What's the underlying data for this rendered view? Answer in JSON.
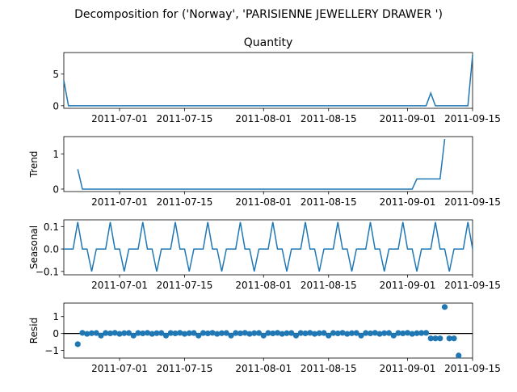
{
  "figure": {
    "suptitle": "Decomposition for ('Norway', 'PARISIENNE JEWELLERY DRAWER ')",
    "line_color": "#1f77b4"
  },
  "chart_data": [
    {
      "type": "line",
      "title": "Quantity",
      "ylabel": "",
      "xlim": [
        "2011-06-19",
        "2011-09-15"
      ],
      "x_ticks": [
        "2011-07-01",
        "2011-07-15",
        "2011-08-01",
        "2011-08-15",
        "2011-09-01",
        "2011-09-15"
      ],
      "y_ticks": [
        0,
        5
      ],
      "ylim": [
        -0.4,
        8.4
      ],
      "grid": false,
      "series": [
        {
          "points": [
            [
              "2011-06-19",
              4
            ],
            [
              "2011-06-20",
              0
            ],
            [
              "2011-09-05",
              0
            ],
            [
              "2011-09-06",
              2
            ],
            [
              "2011-09-07",
              0
            ],
            [
              "2011-09-14",
              0
            ],
            [
              "2011-09-15",
              8
            ]
          ]
        }
      ]
    },
    {
      "type": "line",
      "title": "",
      "ylabel": "Trend",
      "xlim": [
        "2011-06-19",
        "2011-09-15"
      ],
      "x_ticks": [
        "2011-07-01",
        "2011-07-15",
        "2011-08-01",
        "2011-08-15",
        "2011-09-01",
        "2011-09-15"
      ],
      "y_ticks": [
        0,
        1
      ],
      "ylim": [
        -0.07,
        1.5
      ],
      "grid": false,
      "series": [
        {
          "points": [
            [
              "2011-06-22",
              0.57
            ],
            [
              "2011-06-23",
              0
            ],
            [
              "2011-09-02",
              0
            ],
            [
              "2011-09-03",
              0.29
            ],
            [
              "2011-09-08",
              0.29
            ],
            [
              "2011-09-09",
              1.43
            ]
          ]
        }
      ]
    },
    {
      "type": "line",
      "title": "",
      "ylabel": "Seasonal",
      "xlim": [
        "2011-06-19",
        "2011-09-15"
      ],
      "x_ticks": [
        "2011-07-01",
        "2011-07-15",
        "2011-08-01",
        "2011-08-15",
        "2011-09-01",
        "2011-09-15"
      ],
      "y_ticks": [
        -0.1,
        0.0,
        0.1
      ],
      "y_tick_labels": [
        "−0.1",
        "0.0",
        "0.1"
      ],
      "ylim": [
        -0.115,
        0.13
      ],
      "grid": false,
      "seasonal": {
        "period": 7,
        "start": "2011-06-19",
        "cycle": [
          0,
          0,
          0,
          0.12,
          0,
          0,
          -0.1
        ]
      }
    },
    {
      "type": "scatter",
      "title": "",
      "ylabel": "Resid",
      "xlim": [
        "2011-06-19",
        "2011-09-15"
      ],
      "x_ticks": [
        "2011-07-01",
        "2011-07-15",
        "2011-08-01",
        "2011-08-15",
        "2011-09-01",
        "2011-09-15"
      ],
      "y_ticks": [
        -1,
        0,
        1
      ],
      "y_tick_labels": [
        "−1",
        "0",
        "1"
      ],
      "ylim": [
        -1.45,
        1.8
      ],
      "grid": false,
      "zero_line": true,
      "resid": {
        "start": "2011-06-22",
        "base_cycle": [
          0.01,
          0.04,
          -0.02,
          0.02,
          0.03,
          -0.12,
          0.03
        ],
        "overrides": [
          [
            "2011-06-22",
            -0.63
          ],
          [
            "2011-09-05",
            0.04
          ],
          [
            "2011-09-06",
            -0.29
          ],
          [
            "2011-09-07",
            -0.29
          ],
          [
            "2011-09-08",
            -0.29
          ],
          [
            "2011-09-09",
            1.57
          ],
          [
            "2011-09-10",
            -0.29
          ],
          [
            "2011-09-11",
            -0.29
          ],
          [
            "2011-09-12",
            -1.3
          ]
        ]
      }
    }
  ]
}
